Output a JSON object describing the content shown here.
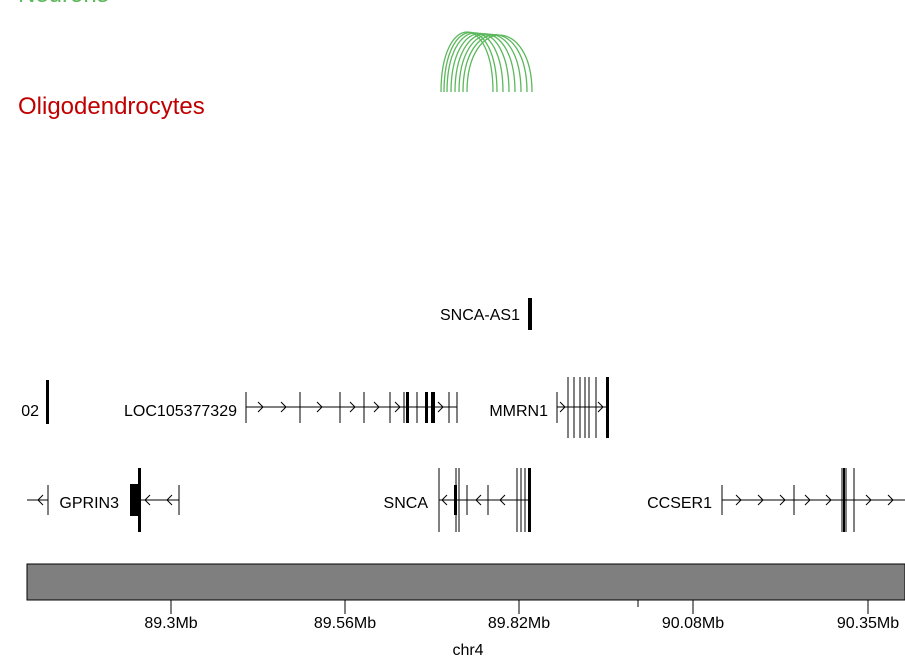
{
  "tracks": {
    "neurons": {
      "label": "Neurons",
      "color": "#5cb85c"
    },
    "oligodendrocytes": {
      "label": "Oligodendrocytes",
      "color": "#c00000"
    }
  },
  "genes": {
    "snca_as1": "SNCA-AS1",
    "gene_clipped": "02",
    "loc105377329": "LOC105377329",
    "mmrn1": "MMRN1",
    "gprin3": "GPRIN3",
    "snca": "SNCA",
    "ccser1": "CCSER1"
  },
  "axis": {
    "chromosome": "chr4",
    "ticks": [
      "89.3Mb",
      "89.56Mb",
      "89.82Mb",
      "90.08Mb",
      "90.35Mb"
    ],
    "ideogram_color": "#7f7f7f",
    "arc_color": "#5cb85c"
  }
}
